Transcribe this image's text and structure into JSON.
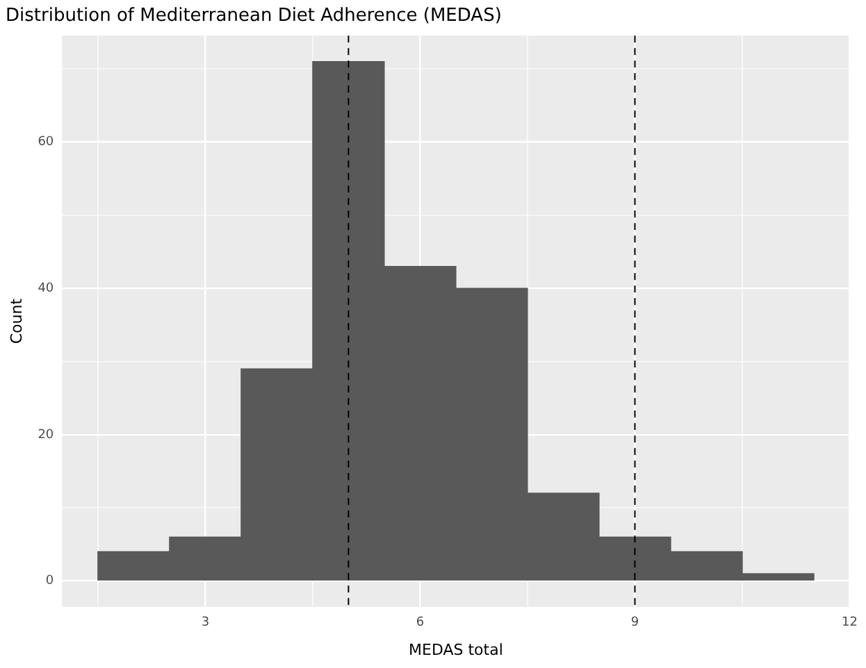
{
  "chart_data": {
    "type": "histogram",
    "title": "Distribution of Mediterranean Diet Adherence (MEDAS)",
    "xlabel": "MEDAS total",
    "ylabel": "Count",
    "bins": [
      1.5,
      2.5,
      3.5,
      4.5,
      5.5,
      6.5,
      7.5,
      8.5,
      9.5,
      10.5,
      11.5
    ],
    "values": [
      4,
      6,
      29,
      71,
      43,
      40,
      12,
      6,
      4,
      1
    ],
    "color": "#595959",
    "xlim": [
      1,
      12
    ],
    "xticks": [
      {
        "value": 1.5,
        "label": null
      },
      3,
      {
        "value": 4.5,
        "label": null
      },
      6,
      {
        "value": 7.5,
        "label": null
      },
      9,
      {
        "value": 10.5,
        "label": null
      },
      12
    ],
    "ylim": [
      -3.55,
      74.55
    ],
    "yticks": [
      0,
      {
        "value": 10,
        "label": null
      },
      20,
      {
        "value": 30,
        "label": null
      },
      40,
      {
        "value": 50,
        "label": null
      },
      60,
      {
        "value": 70,
        "label": null
      }
    ],
    "grid": true,
    "ref_lines": [
      {
        "axis": "x",
        "value": 5,
        "line_style": "dashed",
        "color": "#000000"
      },
      {
        "axis": "x",
        "value": 9,
        "line_style": "dashed",
        "color": "#000000"
      }
    ]
  }
}
